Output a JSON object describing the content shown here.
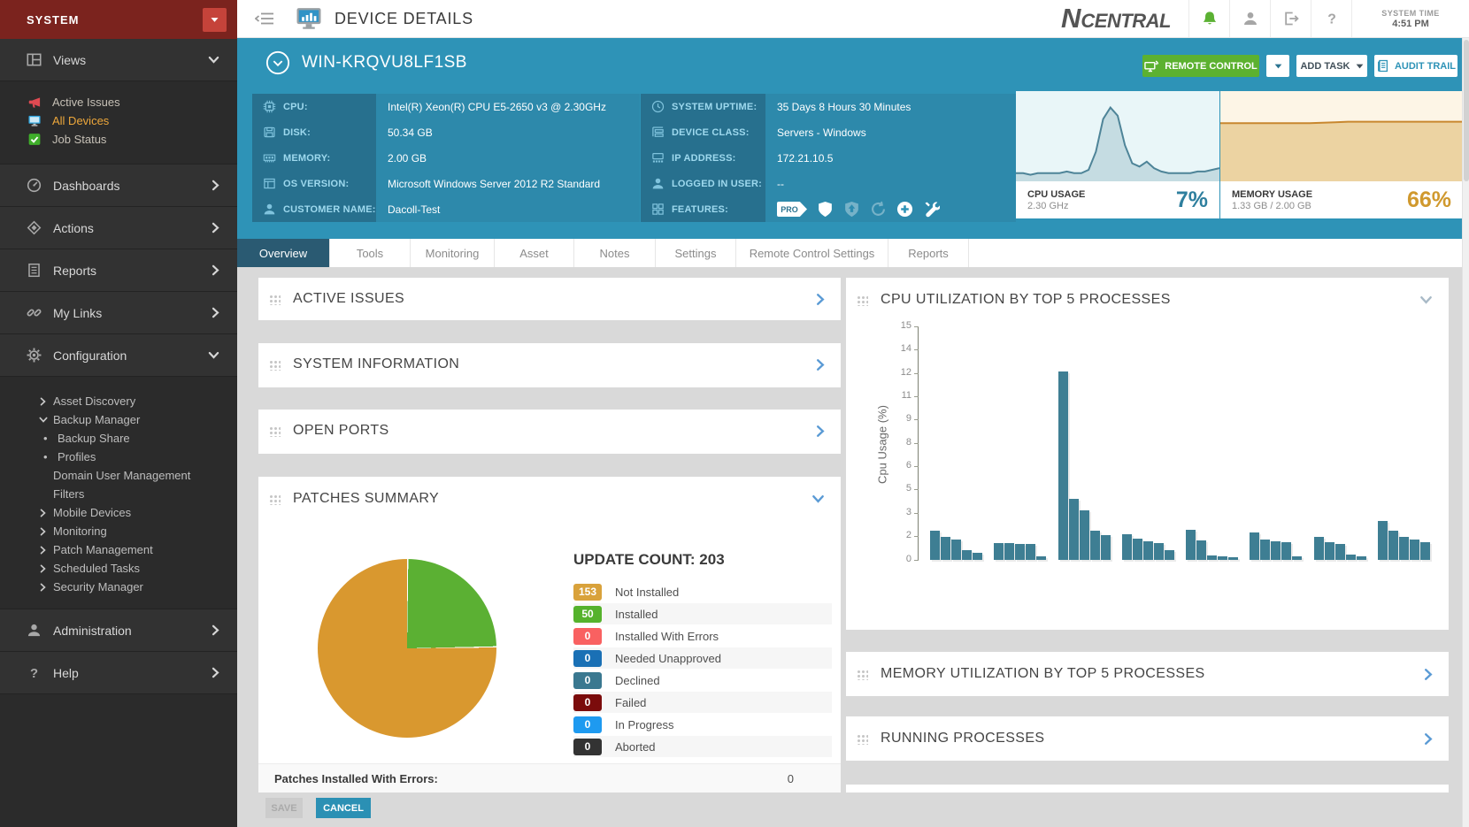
{
  "topbar": {
    "title": "DEVICE DETAILS",
    "logo_n": "N",
    "logo_rest": "CENTRAL",
    "system_time_label": "SYSTEM TIME",
    "system_time": "4:51 PM",
    "icons": [
      {
        "name": "bell-icon",
        "color": "#5bb133"
      },
      {
        "name": "user-icon",
        "color": "#a6a6a6"
      },
      {
        "name": "signout-icon",
        "color": "#a6a6a6"
      },
      {
        "name": "help-icon",
        "color": "#a6a6a6"
      }
    ]
  },
  "sidebar": {
    "brand": "SYSTEM",
    "sections": [
      {
        "label": "Views",
        "icon": "views-grid-icon",
        "expanded": true,
        "items": [
          {
            "label": "Active Issues",
            "icon": "megaphone-icon",
            "selected": false
          },
          {
            "label": "All Devices",
            "icon": "monitor-icon",
            "selected": true
          },
          {
            "label": "Job Status",
            "icon": "check-square-icon",
            "selected": false
          }
        ]
      },
      {
        "label": "Dashboards",
        "icon": "gauge-icon"
      },
      {
        "label": "Actions",
        "icon": "diamond-icon"
      },
      {
        "label": "Reports",
        "icon": "report-icon"
      },
      {
        "label": "My Links",
        "icon": "link-icon"
      },
      {
        "label": "Configuration",
        "icon": "gear-icon",
        "expanded": true,
        "subitems": [
          {
            "label": "Asset Discovery",
            "chevron": "right"
          },
          {
            "label": "Backup Manager",
            "chevron": "down"
          },
          {
            "label": "Backup Share",
            "bullet": true
          },
          {
            "label": "Profiles",
            "bullet": true
          },
          {
            "label": "Domain User Management"
          },
          {
            "label": "Filters"
          },
          {
            "label": "Mobile Devices",
            "chevron": "right"
          },
          {
            "label": "Monitoring",
            "chevron": "right"
          },
          {
            "label": "Patch Management",
            "chevron": "right"
          },
          {
            "label": "Scheduled Tasks",
            "chevron": "right"
          },
          {
            "label": "Security Manager",
            "chevron": "right"
          }
        ]
      },
      {
        "label": "Administration",
        "icon": "person-icon"
      },
      {
        "label": "Help",
        "icon": "help-icon"
      }
    ]
  },
  "banner": {
    "device_name": "WIN-KRQVU8LF1SB",
    "buttons": {
      "remote_control": "REMOTE CONTROL",
      "add_task": "ADD TASK",
      "audit_trail": "AUDIT TRAIL"
    },
    "info_left": [
      {
        "label": "CPU:",
        "value": "Intel(R) Xeon(R) CPU E5-2650 v3 @ 2.30GHz",
        "icon": "cpu-icon"
      },
      {
        "label": "DISK:",
        "value": "50.34 GB",
        "icon": "disk-icon"
      },
      {
        "label": "MEMORY:",
        "value": "2.00 GB",
        "icon": "memory-icon"
      },
      {
        "label": "OS VERSION:",
        "value": "Microsoft Windows Server 2012 R2 Standard",
        "icon": "os-icon"
      },
      {
        "label": "CUSTOMER NAME:",
        "value": "Dacoll-Test",
        "icon": "person-icon"
      }
    ],
    "info_right": [
      {
        "label": "SYSTEM UPTIME:",
        "value": "35 Days 8 Hours 30 Minutes",
        "icon": "clock-icon"
      },
      {
        "label": "DEVICE CLASS:",
        "value": "Servers - Windows",
        "icon": "device-class-icon"
      },
      {
        "label": "IP ADDRESS:",
        "value": "172.21.10.5",
        "icon": "ip-icon"
      },
      {
        "label": "LOGGED IN USER:",
        "value": "--",
        "icon": "person-icon"
      },
      {
        "label": "FEATURES:",
        "value": "",
        "icon": "features-icon",
        "features": true
      }
    ],
    "features": [
      {
        "name": "pro-badge",
        "label": "PRO",
        "dim": false
      },
      {
        "name": "shield-icon",
        "dim": false
      },
      {
        "name": "shield-upgrade-icon",
        "dim": true
      },
      {
        "name": "refresh-icon",
        "dim": true
      },
      {
        "name": "add-circle-icon",
        "dim": false
      },
      {
        "name": "tools-icon",
        "dim": false
      }
    ]
  },
  "tabs": [
    {
      "label": "Overview",
      "active": true
    },
    {
      "label": "Tools",
      "active": false
    },
    {
      "label": "Monitoring",
      "active": false
    },
    {
      "label": "Asset",
      "active": false
    },
    {
      "label": "Notes",
      "active": false
    },
    {
      "label": "Settings",
      "active": false
    },
    {
      "label": "Remote Control Settings",
      "active": false
    },
    {
      "label": "Reports",
      "active": false
    }
  ],
  "panels": {
    "active_issues": {
      "title": "ACTIVE ISSUES",
      "chevron": "right"
    },
    "system_information": {
      "title": "SYSTEM INFORMATION",
      "chevron": "right"
    },
    "open_ports": {
      "title": "OPEN PORTS",
      "chevron": "right"
    },
    "patches_summary": {
      "title": "PATCHES SUMMARY",
      "chevron": "down",
      "footer_label": "Patches Installed With Errors:",
      "footer_value": "0",
      "save_label": "SAVE",
      "cancel_label": "CANCEL"
    },
    "cpu_utilization": {
      "title": "CPU UTILIZATION BY TOP 5 PROCESSES",
      "chevron": "down"
    },
    "memory_utilization": {
      "title": "MEMORY UTILIZATION BY TOP 5 PROCESSES",
      "chevron": "right"
    },
    "running_processes": {
      "title": "RUNNING PROCESSES",
      "chevron": "right"
    }
  },
  "chart_data": [
    {
      "id": "cpu_usage_sparkline",
      "type": "area",
      "title": "CPU USAGE",
      "subtitle": "2.30 GHz",
      "value_label": "7%",
      "scale_max": 55,
      "points": [
        5,
        5,
        4,
        5,
        5,
        5,
        5,
        6,
        5,
        5,
        7,
        18,
        38,
        45,
        40,
        22,
        11,
        9,
        12,
        8,
        6,
        5,
        5,
        5,
        5,
        6,
        6,
        7,
        8
      ],
      "colors": {
        "bg": "#e9f6f8",
        "fill": "#c5dce2",
        "line": "#4e8498",
        "value": "#2e7f9e"
      }
    },
    {
      "id": "memory_usage_sparkline",
      "type": "area",
      "title": "MEMORY USAGE",
      "subtitle": "1.33 GB / 2.00 GB",
      "value_label": "66%",
      "scale_max": 100,
      "points": [
        64.5,
        64.5,
        64.5,
        64.5,
        64.5,
        64.5,
        64.5,
        64.5,
        65,
        65.5,
        66,
        66,
        66,
        66,
        66,
        66,
        66,
        66,
        66,
        66
      ],
      "colors": {
        "bg": "#fdf5e6",
        "fill": "#ecd3a2",
        "line": "#c8872e",
        "value": "#d0992e"
      }
    },
    {
      "id": "patches_summary_pie",
      "type": "pie",
      "title": "UPDATE COUNT: 203",
      "total": 203,
      "slices": [
        {
          "label": "Installed",
          "value": 50,
          "color": "#5bb033"
        },
        {
          "label": "Not Installed",
          "value": 153,
          "color": "#d9982f"
        }
      ],
      "legend": [
        {
          "count": "153",
          "label": "Not Installed",
          "color": "#d9a23b"
        },
        {
          "count": "50",
          "label": "Installed",
          "color": "#55b22c"
        },
        {
          "count": "0",
          "label": "Installed With Errors",
          "color": "#f96161"
        },
        {
          "count": "0",
          "label": "Needed Unapproved",
          "color": "#1a70b5"
        },
        {
          "count": "0",
          "label": "Declined",
          "color": "#3a7890"
        },
        {
          "count": "0",
          "label": "Failed",
          "color": "#7b0c0c"
        },
        {
          "count": "0",
          "label": "In Progress",
          "color": "#1e9af0"
        },
        {
          "count": "0",
          "label": "Aborted",
          "color": "#333333"
        }
      ]
    },
    {
      "id": "cpu_top5_processes",
      "type": "bar",
      "title": "CPU UTILIZATION BY TOP 5 PROCESSES",
      "xlabel": "",
      "ylabel": "Cpu Usage (%)",
      "ylim": [
        0,
        15
      ],
      "ytick_labels": [
        "15",
        "14",
        "12",
        "11",
        "9",
        "8",
        "6",
        "5",
        "3",
        "2",
        "0"
      ],
      "bar_color": "#3e7e93",
      "groups": [
        [
          1.85,
          1.45,
          1.3,
          0.6,
          0.45
        ],
        [
          1.1,
          1.1,
          1.05,
          1.0,
          0.2
        ],
        [
          12.1,
          3.9,
          3.2,
          1.9,
          1.6
        ],
        [
          1.65,
          1.35,
          1.2,
          1.1,
          0.65
        ],
        [
          1.95,
          1.25,
          0.3,
          0.2,
          0.15
        ],
        [
          1.75,
          1.3,
          1.2,
          1.15,
          0.2
        ],
        [
          1.5,
          1.15,
          1.0,
          0.35,
          0.25
        ],
        [
          2.5,
          1.9,
          1.5,
          1.3,
          1.15
        ]
      ]
    }
  ]
}
